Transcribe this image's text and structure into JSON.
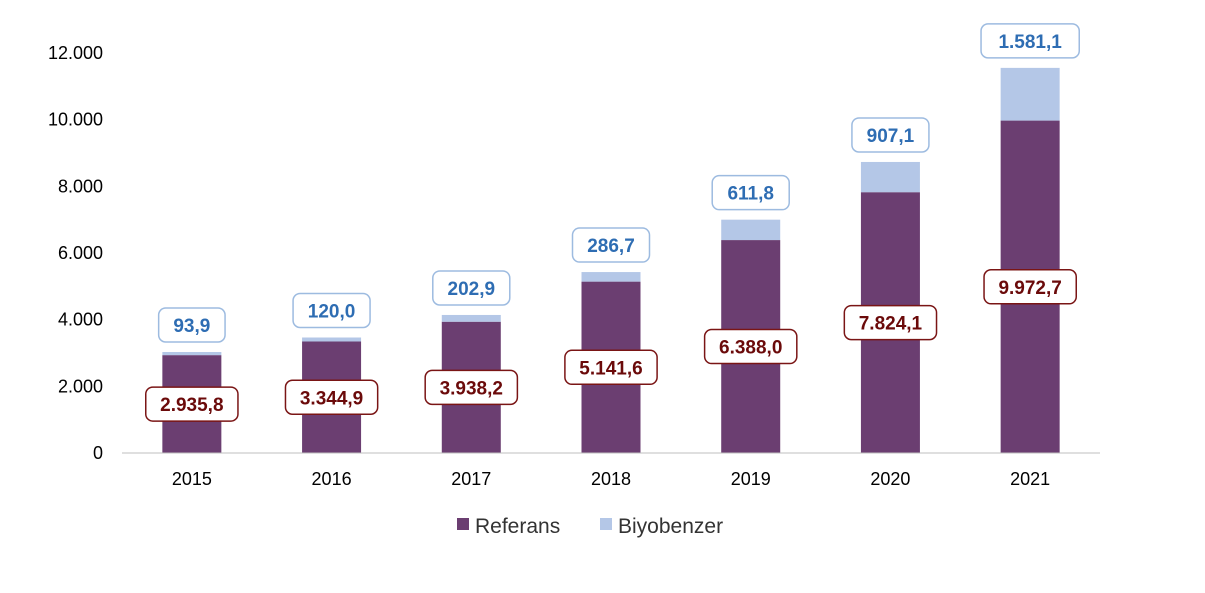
{
  "chart_data": {
    "type": "bar",
    "stacked": true,
    "categories": [
      "2015",
      "2016",
      "2017",
      "2018",
      "2019",
      "2020",
      "2021"
    ],
    "series": [
      {
        "name": "Referans",
        "values": [
          2935.8,
          3344.9,
          3938.2,
          5141.6,
          6388.0,
          7824.1,
          9972.7
        ],
        "labels": [
          "2.935,8",
          "3.344,9",
          "3.938,2",
          "5.141,6",
          "6.388,0",
          "7.824,1",
          "9.972,7"
        ],
        "color": "#6b3e71",
        "label_color": "#6b0a0a",
        "label_border": "#7a1515"
      },
      {
        "name": "Biyobenzer",
        "values": [
          93.9,
          120.0,
          202.9,
          286.7,
          611.8,
          907.1,
          1581.1
        ],
        "labels": [
          "93,9",
          "120,0",
          "202,9",
          "286,7",
          "611,8",
          "907,1",
          "1.581,1"
        ],
        "color": "#b4c7e7",
        "label_color": "#2e6db3",
        "label_border": "#9dbbe0"
      }
    ],
    "ylim": [
      0,
      12000
    ],
    "yticks": [
      0,
      2000,
      4000,
      6000,
      8000,
      10000,
      12000
    ],
    "ytick_labels": [
      "0",
      "2.000",
      "4.000",
      "6.000",
      "8.000",
      "10.000",
      "12.000"
    ],
    "grid": false,
    "legend": "bottom",
    "title": "",
    "xlabel": "",
    "ylabel": ""
  }
}
